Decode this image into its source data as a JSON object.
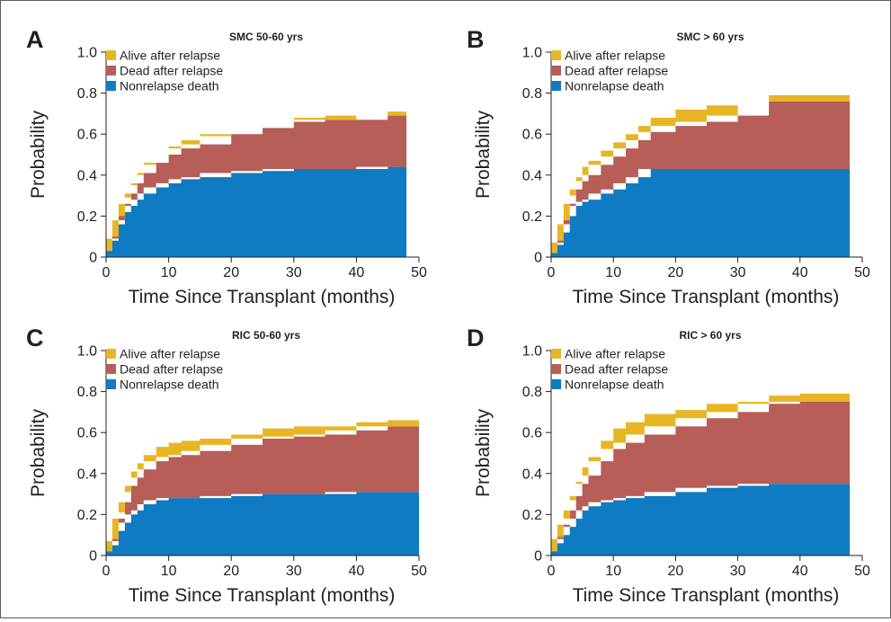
{
  "chart_data": [
    {
      "panel": "A",
      "type": "area",
      "stacked": true,
      "title": "SMC 50-60 yrs",
      "xlabel": "Time Since Transplant (months)",
      "ylabel": "Probability",
      "xlim": [
        0,
        50
      ],
      "ylim": [
        0,
        1.0
      ],
      "xticks": [
        0,
        10,
        20,
        30,
        40,
        50
      ],
      "yticks": [
        "0",
        "0.2",
        "0.4",
        "0.6",
        "0.8",
        "1.0"
      ],
      "legend_position": "top-left",
      "legend": [
        "Alive after relapse",
        "Dead after relapse",
        "Nonrelapse death"
      ],
      "colors": {
        "Alive after relapse": "#e8b624",
        "Dead after relapse": "#b65e57",
        "Nonrelapse death": "#0f7bc3"
      },
      "x": [
        0,
        1,
        2,
        3,
        4,
        5,
        6,
        8,
        10,
        12,
        15,
        20,
        25,
        30,
        35,
        40,
        45,
        48
      ],
      "series": [
        {
          "name": "Nonrelapse death",
          "values": [
            0.03,
            0.08,
            0.16,
            0.22,
            0.25,
            0.28,
            0.31,
            0.34,
            0.36,
            0.38,
            0.39,
            0.41,
            0.42,
            0.43,
            0.43,
            0.43,
            0.44,
            0.44
          ]
        },
        {
          "name": "Dead after relapse",
          "values": [
            0.0,
            0.01,
            0.02,
            0.04,
            0.06,
            0.08,
            0.1,
            0.12,
            0.14,
            0.15,
            0.16,
            0.19,
            0.21,
            0.23,
            0.24,
            0.24,
            0.25,
            0.25
          ]
        },
        {
          "name": "Alive after relapse",
          "values": [
            0.0,
            0.01,
            0.02,
            0.03,
            0.04,
            0.04,
            0.04,
            0.04,
            0.04,
            0.04,
            0.04,
            0.03,
            0.03,
            0.02,
            0.02,
            0.02,
            0.02,
            0.02
          ]
        }
      ]
    },
    {
      "panel": "B",
      "type": "area",
      "stacked": true,
      "title": "SMC > 60 yrs",
      "xlabel": "Time Since Transplant (months)",
      "ylabel": "Probability",
      "xlim": [
        0,
        50
      ],
      "ylim": [
        0,
        1.0
      ],
      "xticks": [
        0,
        10,
        20,
        30,
        40,
        50
      ],
      "yticks": [
        "0",
        "0.2",
        "0.4",
        "0.6",
        "0.8",
        "1.0"
      ],
      "legend_position": "top-left",
      "legend": [
        "Alive after relapse",
        "Dead after relapse",
        "Nonrelapse death"
      ],
      "colors": {
        "Alive after relapse": "#e8b624",
        "Dead after relapse": "#b65e57",
        "Nonrelapse death": "#0f7bc3"
      },
      "x": [
        0,
        1,
        2,
        3,
        4,
        5,
        6,
        8,
        10,
        12,
        14,
        16,
        20,
        25,
        30,
        35,
        40,
        45,
        48
      ],
      "series": [
        {
          "name": "Nonrelapse death",
          "values": [
            0.02,
            0.06,
            0.12,
            0.2,
            0.25,
            0.27,
            0.28,
            0.31,
            0.33,
            0.36,
            0.39,
            0.43,
            0.43,
            0.43,
            0.43,
            0.43,
            0.43,
            0.43,
            0.43
          ]
        },
        {
          "name": "Dead after relapse",
          "values": [
            0.0,
            0.01,
            0.04,
            0.06,
            0.08,
            0.1,
            0.12,
            0.14,
            0.16,
            0.17,
            0.18,
            0.18,
            0.21,
            0.23,
            0.26,
            0.33,
            0.33,
            0.33,
            0.33
          ]
        },
        {
          "name": "Alive after relapse",
          "values": [
            0.0,
            0.01,
            0.02,
            0.04,
            0.06,
            0.07,
            0.07,
            0.07,
            0.07,
            0.07,
            0.07,
            0.07,
            0.08,
            0.08,
            0.07,
            0.03,
            0.03,
            0.03,
            0.03
          ]
        }
      ]
    },
    {
      "panel": "C",
      "type": "area",
      "stacked": true,
      "title": "RIC 50-60 yrs",
      "xlabel": "Time Since Transplant (months)",
      "ylabel": "Probability",
      "xlim": [
        0,
        50
      ],
      "ylim": [
        0,
        1.0
      ],
      "xticks": [
        0,
        10,
        20,
        30,
        40,
        50
      ],
      "yticks": [
        "0",
        "0.2",
        "0.4",
        "0.6",
        "0.8",
        "1.0"
      ],
      "legend_position": "top-left",
      "legend": [
        "Alive after relapse",
        "Dead after relapse",
        "Nonrelapse death"
      ],
      "colors": {
        "Alive after relapse": "#e8b624",
        "Dead after relapse": "#b65e57",
        "Nonrelapse death": "#0f7bc3"
      },
      "x": [
        0,
        1,
        2,
        3,
        4,
        5,
        6,
        8,
        10,
        12,
        15,
        20,
        25,
        30,
        35,
        40,
        45,
        50
      ],
      "series": [
        {
          "name": "Nonrelapse death",
          "values": [
            0.02,
            0.05,
            0.12,
            0.16,
            0.2,
            0.22,
            0.25,
            0.27,
            0.28,
            0.28,
            0.28,
            0.29,
            0.3,
            0.3,
            0.3,
            0.31,
            0.31,
            0.31
          ]
        },
        {
          "name": "Dead after relapse",
          "values": [
            0.0,
            0.02,
            0.06,
            0.1,
            0.14,
            0.16,
            0.17,
            0.19,
            0.2,
            0.21,
            0.23,
            0.25,
            0.27,
            0.28,
            0.29,
            0.3,
            0.32,
            0.32
          ]
        },
        {
          "name": "Alive after relapse",
          "values": [
            0.0,
            0.01,
            0.03,
            0.05,
            0.07,
            0.07,
            0.07,
            0.07,
            0.07,
            0.07,
            0.06,
            0.05,
            0.05,
            0.05,
            0.04,
            0.04,
            0.03,
            0.04
          ]
        }
      ]
    },
    {
      "panel": "D",
      "type": "area",
      "stacked": true,
      "title": "RIC > 60 yrs",
      "xlabel": "Time Since Transplant (months)",
      "ylabel": "Probability",
      "xlim": [
        0,
        50
      ],
      "ylim": [
        0,
        1.0
      ],
      "xticks": [
        0,
        10,
        20,
        30,
        40,
        50
      ],
      "yticks": [
        "0",
        "0.2",
        "0.4",
        "0.6",
        "0.8",
        "1.0"
      ],
      "legend_position": "top-left",
      "legend": [
        "Alive after relapse",
        "Dead after relapse",
        "Nonrelapse death"
      ],
      "colors": {
        "Alive after relapse": "#e8b624",
        "Dead after relapse": "#b65e57",
        "Nonrelapse death": "#0f7bc3"
      },
      "x": [
        0,
        1,
        2,
        3,
        4,
        5,
        6,
        8,
        10,
        12,
        15,
        20,
        25,
        30,
        35,
        40,
        45,
        48
      ],
      "series": [
        {
          "name": "Nonrelapse death",
          "values": [
            0.02,
            0.06,
            0.1,
            0.14,
            0.18,
            0.22,
            0.24,
            0.26,
            0.27,
            0.28,
            0.29,
            0.31,
            0.33,
            0.34,
            0.35,
            0.35,
            0.35,
            0.35
          ]
        },
        {
          "name": "Dead after relapse",
          "values": [
            0.0,
            0.02,
            0.05,
            0.08,
            0.11,
            0.13,
            0.15,
            0.2,
            0.25,
            0.27,
            0.3,
            0.32,
            0.34,
            0.36,
            0.39,
            0.4,
            0.4,
            0.4
          ]
        },
        {
          "name": "Alive after relapse",
          "values": [
            0.0,
            0.01,
            0.03,
            0.05,
            0.07,
            0.08,
            0.09,
            0.1,
            0.1,
            0.1,
            0.1,
            0.08,
            0.07,
            0.05,
            0.04,
            0.04,
            0.04,
            0.04
          ]
        }
      ]
    }
  ]
}
